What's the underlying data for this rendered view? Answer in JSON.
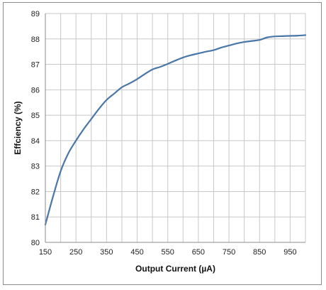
{
  "chart_data": {
    "type": "line",
    "title": "",
    "xlabel": "Output Current (µA)",
    "ylabel": "Effciency (%)",
    "xlim": [
      150,
      1000
    ],
    "ylim": [
      80,
      89
    ],
    "x_ticks": [
      150,
      250,
      350,
      450,
      550,
      650,
      750,
      850,
      950
    ],
    "x_ticks_minor": [
      200,
      300,
      400,
      500,
      600,
      700,
      800,
      900
    ],
    "y_ticks": [
      80,
      81,
      82,
      83,
      84,
      85,
      86,
      87,
      88,
      89
    ],
    "grid": true,
    "legend": "none",
    "series": [
      {
        "color": "#4a76a8",
        "x": [
          150,
          175,
          200,
          225,
          250,
          275,
          300,
          325,
          350,
          375,
          400,
          425,
          450,
          475,
          500,
          525,
          550,
          575,
          600,
          625,
          650,
          675,
          700,
          725,
          750,
          775,
          800,
          825,
          850,
          875,
          900,
          925,
          950,
          975,
          1000
        ],
        "y": [
          80.7,
          81.8,
          82.8,
          83.5,
          84.0,
          84.45,
          84.85,
          85.25,
          85.6,
          85.85,
          86.1,
          86.25,
          86.42,
          86.62,
          86.8,
          86.9,
          87.02,
          87.15,
          87.27,
          87.36,
          87.43,
          87.5,
          87.56,
          87.66,
          87.74,
          87.82,
          87.88,
          87.92,
          87.96,
          88.06,
          88.1,
          88.11,
          88.12,
          88.13,
          88.15
        ]
      }
    ]
  }
}
